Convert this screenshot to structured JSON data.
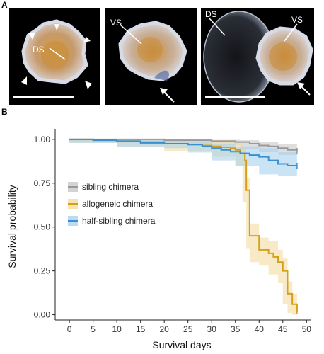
{
  "panel_a": {
    "letter": "A",
    "images": [
      {
        "labels": [
          "DS"
        ],
        "arrowheads": 5,
        "scale_bar": true
      },
      {
        "labels": [
          "VS"
        ],
        "arrow": true,
        "scale_bar": false
      },
      {
        "labels": [
          "DS",
          "VS"
        ],
        "arrow": true,
        "scale_bar": true
      }
    ]
  },
  "panel_b": {
    "letter": "B"
  },
  "chart_data": {
    "type": "line",
    "step": true,
    "xlabel": "Survival days",
    "ylabel": "Survival probability",
    "xlim": [
      -3,
      51
    ],
    "ylim": [
      -0.03,
      1.06
    ],
    "xticks": [
      0,
      5,
      10,
      15,
      20,
      25,
      30,
      35,
      40,
      45,
      50
    ],
    "yticks": [
      0.0,
      0.25,
      0.5,
      0.75,
      1.0
    ],
    "ytick_labels": [
      "0.00",
      "0.25",
      "0.50",
      "0.75",
      "1.00"
    ],
    "grid": false,
    "legend_position": "center-left",
    "series": [
      {
        "name": "sibling chimera",
        "color": "#999999",
        "band_color": "#c8c8c8",
        "points": [
          [
            0,
            1.0
          ],
          [
            5,
            1.0
          ],
          [
            10,
            1.0
          ],
          [
            15,
            1.0
          ],
          [
            20,
            0.995
          ],
          [
            25,
            0.995
          ],
          [
            30,
            0.99
          ],
          [
            35,
            0.985
          ],
          [
            38,
            0.975
          ],
          [
            40,
            0.965
          ],
          [
            42,
            0.96
          ],
          [
            44,
            0.95
          ],
          [
            46,
            0.94
          ],
          [
            48,
            0.935
          ]
        ],
        "band": [
          [
            0,
            1.0,
            1.0
          ],
          [
            10,
            1.0,
            0.99
          ],
          [
            20,
            1.0,
            0.985
          ],
          [
            30,
            0.997,
            0.975
          ],
          [
            36,
            0.995,
            0.965
          ],
          [
            40,
            0.985,
            0.945
          ],
          [
            44,
            0.975,
            0.93
          ],
          [
            48,
            0.965,
            0.91
          ]
        ]
      },
      {
        "name": "allogeneic chimera",
        "color": "#d4a017",
        "band_color": "#f3dca0",
        "points": [
          [
            0,
            1.0
          ],
          [
            5,
            0.995
          ],
          [
            10,
            0.99
          ],
          [
            15,
            0.985
          ],
          [
            20,
            0.975
          ],
          [
            25,
            0.97
          ],
          [
            28,
            0.965
          ],
          [
            30,
            0.96
          ],
          [
            32,
            0.955
          ],
          [
            34,
            0.95
          ],
          [
            35,
            0.94
          ],
          [
            36,
            0.92
          ],
          [
            37,
            0.88
          ],
          [
            37.3,
            0.71
          ],
          [
            38,
            0.45
          ],
          [
            39,
            0.45
          ],
          [
            40,
            0.37
          ],
          [
            41,
            0.37
          ],
          [
            42,
            0.35
          ],
          [
            43,
            0.33
          ],
          [
            44,
            0.3
          ],
          [
            45,
            0.25
          ],
          [
            46,
            0.12
          ],
          [
            47,
            0.06
          ],
          [
            48,
            0.02
          ]
        ],
        "band": [
          [
            0,
            1.0,
            1.0
          ],
          [
            10,
            1.0,
            0.98
          ],
          [
            20,
            0.99,
            0.96
          ],
          [
            30,
            0.985,
            0.935
          ],
          [
            35,
            0.97,
            0.9
          ],
          [
            36.5,
            0.96,
            0.85
          ],
          [
            37.3,
            0.78,
            0.64
          ],
          [
            38,
            0.52,
            0.38
          ],
          [
            40,
            0.44,
            0.3
          ],
          [
            42,
            0.42,
            0.28
          ],
          [
            44,
            0.37,
            0.23
          ],
          [
            45,
            0.32,
            0.18
          ],
          [
            46,
            0.19,
            0.06
          ],
          [
            47,
            0.12,
            0.01
          ],
          [
            48,
            0.06,
            0.0
          ]
        ]
      },
      {
        "name": "half-sibling chimera",
        "color": "#3a8fd0",
        "band_color": "#a9d2ee",
        "points": [
          [
            0,
            1.0
          ],
          [
            5,
            0.995
          ],
          [
            10,
            0.99
          ],
          [
            15,
            0.98
          ],
          [
            20,
            0.975
          ],
          [
            25,
            0.97
          ],
          [
            28,
            0.96
          ],
          [
            30,
            0.95
          ],
          [
            32,
            0.94
          ],
          [
            34,
            0.93
          ],
          [
            36,
            0.92
          ],
          [
            38,
            0.91
          ],
          [
            40,
            0.9
          ],
          [
            42,
            0.88
          ],
          [
            44,
            0.86
          ],
          [
            46,
            0.85
          ],
          [
            48,
            0.85
          ]
        ],
        "band": [
          [
            0,
            1.0,
            1.0
          ],
          [
            10,
            1.0,
            0.98
          ],
          [
            20,
            0.99,
            0.955
          ],
          [
            25,
            0.985,
            0.95
          ],
          [
            30,
            0.975,
            0.925
          ],
          [
            35,
            0.96,
            0.88
          ],
          [
            40,
            0.95,
            0.85
          ],
          [
            44,
            0.93,
            0.8
          ],
          [
            48,
            0.92,
            0.79
          ]
        ]
      }
    ]
  }
}
